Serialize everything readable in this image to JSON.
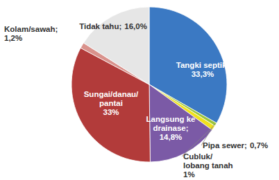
{
  "chart_data": {
    "type": "pie",
    "categories": [
      "Tangki septik;",
      "Pipa sewer;",
      "Cubluk/ lobang tanah",
      "Langsung ke drainase;",
      "Sungai/danau/ pantai",
      "Kolam/sawah;",
      "Tidak tahu;"
    ],
    "values": [
      33.3,
      0.7,
      1,
      14.8,
      33,
      1.2,
      16.0
    ],
    "value_labels": [
      "33,3%",
      "0,7%",
      "1%",
      "14,8%",
      "33%",
      "1,2%",
      "16,0%"
    ],
    "colors": [
      "#3b79c3",
      "#9bc53d",
      "#f0e21b",
      "#7b5aa6",
      "#b23b3a",
      "#d9928c",
      "#e6e6e6"
    ],
    "data_labels": true
  }
}
